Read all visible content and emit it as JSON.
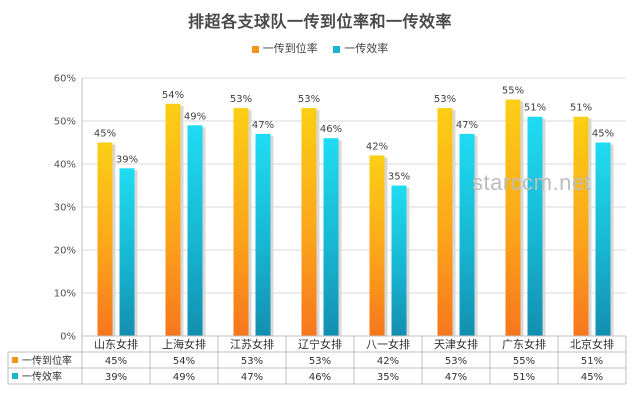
{
  "chart_data": {
    "type": "bar",
    "title": "排超各支球队一传到位率和一传效率",
    "categories": [
      "山东女排",
      "上海女排",
      "江苏女排",
      "辽宁女排",
      "八一女排",
      "天津女排",
      "广东女排",
      "北京女排"
    ],
    "series": [
      {
        "name": "一传到位率",
        "values": [
          45,
          54,
          53,
          53,
          42,
          53,
          55,
          51
        ],
        "labels": [
          "45%",
          "54%",
          "53%",
          "53%",
          "42%",
          "53%",
          "55%",
          "51%"
        ],
        "color": "#f7941d"
      },
      {
        "name": "一传效率",
        "values": [
          39,
          49,
          47,
          46,
          35,
          47,
          51,
          45
        ],
        "labels": [
          "39%",
          "49%",
          "47%",
          "46%",
          "35%",
          "47%",
          "51%",
          "45%"
        ],
        "color": "#1ab3d1"
      }
    ],
    "ylim": [
      0,
      60
    ],
    "yticks": [
      "0%",
      "10%",
      "20%",
      "30%",
      "40%",
      "50%",
      "60%"
    ],
    "grid": true,
    "legend": "top-center",
    "data_table": true
  },
  "watermark": "starccm.net"
}
